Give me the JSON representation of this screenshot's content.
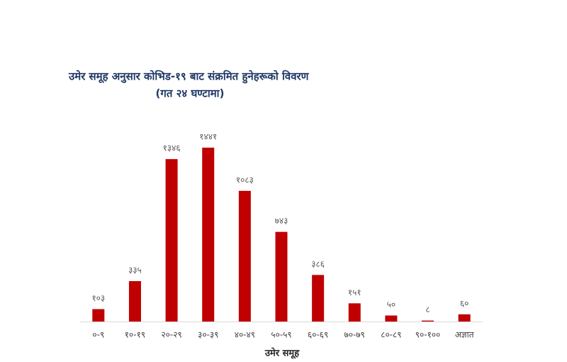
{
  "chart_data": {
    "type": "bar",
    "title": "उमेर समूह अनुसार कोभिड-१९ बाट संक्रमित हुनेहरूको विवरण",
    "subtitle": "(गत २४ घण्टामा)",
    "x_label": "उमेर समूह",
    "categories": [
      "०-९",
      "१०-१९",
      "२०-२९",
      "३०-३९",
      "४०-४९",
      "५०-५९",
      "६०-६९",
      "७०-७९",
      "८०-८९",
      "९०-१००",
      "अज्ञात"
    ],
    "values": [
      103,
      335,
      1346,
      1441,
      1083,
      743,
      386,
      151,
      50,
      8,
      60
    ],
    "value_labels": [
      "१०३",
      "३३५",
      "१३४६",
      "१४४१",
      "१०८३",
      "७४३",
      "३८६",
      "१५१",
      "५०",
      "८",
      "६०"
    ],
    "color": "#c00000"
  }
}
